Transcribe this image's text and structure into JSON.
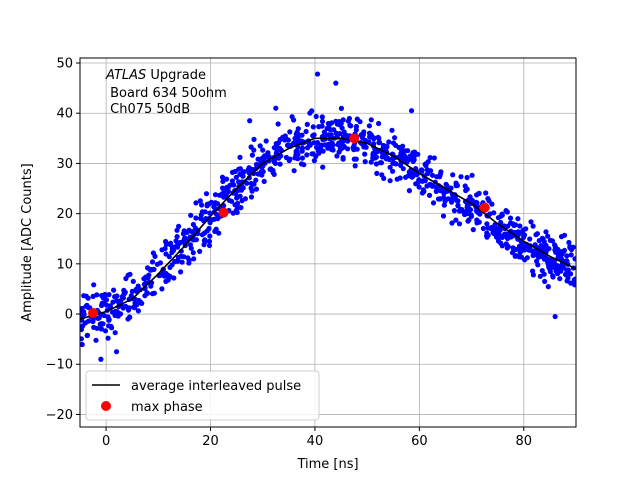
{
  "chart_data": {
    "type": "scatter",
    "title": "",
    "xlabel": "Time [ns]",
    "ylabel": "Amplitude [ADC Counts]",
    "xlim": [
      -5,
      90
    ],
    "ylim": [
      -22.5,
      51
    ],
    "xticks": [
      0,
      20,
      40,
      60,
      80
    ],
    "yticks": [
      -20,
      -10,
      0,
      10,
      20,
      30,
      40,
      50
    ],
    "grid": true,
    "annotation": {
      "italic": "ATLAS",
      "rest": " Upgrade",
      "line2": " Board 634 50ohm",
      "line3": " Ch075 50dB"
    },
    "legend": {
      "placement": "lower-left",
      "entries": [
        "average interleaved pulse",
        "max phase"
      ]
    },
    "colors": {
      "samples": "#0000ff",
      "average": "#000000",
      "max_phase": "#ff0000",
      "grid": "#b0b0b0"
    },
    "series": [
      {
        "name": "average interleaved pulse",
        "kind": "line",
        "x": [
          -5,
          0,
          5,
          10,
          15,
          20,
          25,
          30,
          35,
          40,
          45,
          50,
          55,
          60,
          65,
          70,
          75,
          80,
          85,
          90
        ],
        "y": [
          -1,
          0.5,
          3,
          8,
          13.5,
          19.5,
          25,
          30,
          33,
          35,
          35,
          34,
          31.5,
          28,
          25,
          22,
          18,
          14.5,
          11.5,
          9
        ]
      },
      {
        "name": "max phase",
        "kind": "markers",
        "x": [
          -2.5,
          22.5,
          47.5,
          72.5
        ],
        "y": [
          0.2,
          20.2,
          35,
          21.2
        ]
      },
      {
        "name": "samples",
        "kind": "scatter",
        "noise": 4.2,
        "density_per_ns": 11,
        "outliers": [
          [
            40.5,
            47.8
          ],
          [
            44,
            46
          ],
          [
            32.5,
            41
          ],
          [
            58.5,
            40.5
          ],
          [
            29.5,
            33.5
          ],
          [
            -1,
            -9
          ],
          [
            2,
            -7.5
          ],
          [
            86,
            -0.5
          ],
          [
            84,
            6.5
          ],
          [
            27.5,
            38.5
          ]
        ]
      }
    ]
  }
}
